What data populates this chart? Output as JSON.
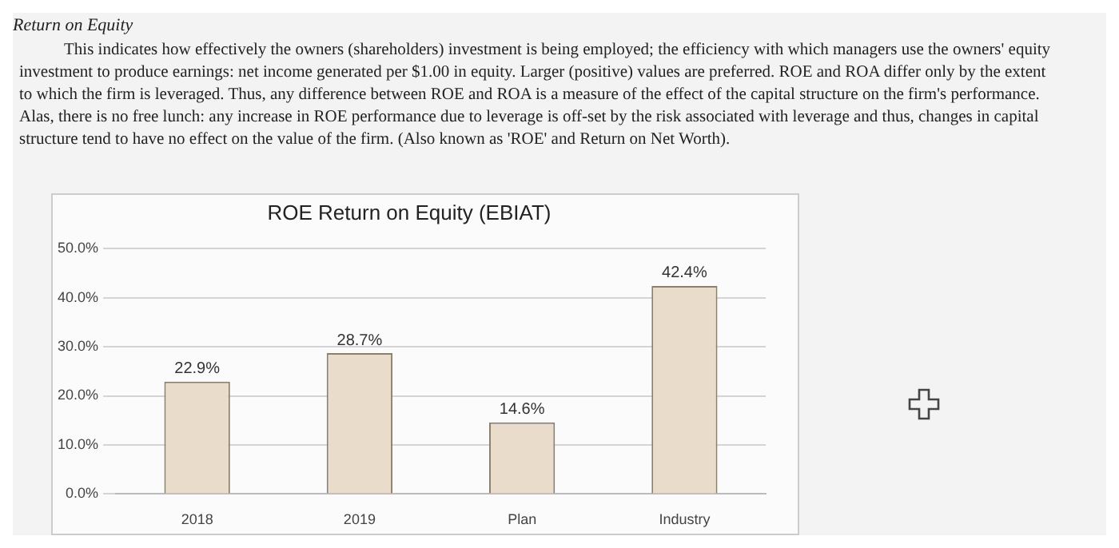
{
  "chart_data": {
    "type": "bar",
    "title": "ROE Return on Equity (EBIAT)",
    "annotations": [
      "Return on Equity",
      "This indicates how effectively the owners (shareholders) investment is being employed; the efficiency with which managers use the owners' equity investment to produce earnings: net income generated per $1.00 in equity. Larger (positive) values are preferred. ROE and ROA differ only by the extent to which the firm is leveraged. Thus, any difference between ROE and ROA is a measure of the effect of the capital structure on the firm's performance. Alas, there is no free lunch: any increase in ROE performance due to leverage is off-set by the risk associated with leverage and thus, changes in capital structure tend to have no effect on the value of the firm. (Also known as 'ROE' and Return on Net Worth)."
    ],
    "categories": [
      "2018",
      "2019",
      "Plan",
      "Industry"
    ],
    "values": [
      22.9,
      28.7,
      14.6,
      42.4
    ],
    "value_labels": [
      "22.9%",
      "28.7%",
      "14.6%",
      "42.4%"
    ],
    "color": "#e9dccb",
    "ylim": [
      0,
      50
    ],
    "yticks": [
      {
        "value": 0,
        "label": "0.0%"
      },
      {
        "value": 10,
        "label": "10.0%"
      },
      {
        "value": 20,
        "label": "20.0%"
      },
      {
        "value": 30,
        "label": "30.0%"
      },
      {
        "value": 40,
        "label": "40.0%"
      },
      {
        "value": 50,
        "label": "50.0%"
      }
    ],
    "grid": "y",
    "legend": false
  }
}
